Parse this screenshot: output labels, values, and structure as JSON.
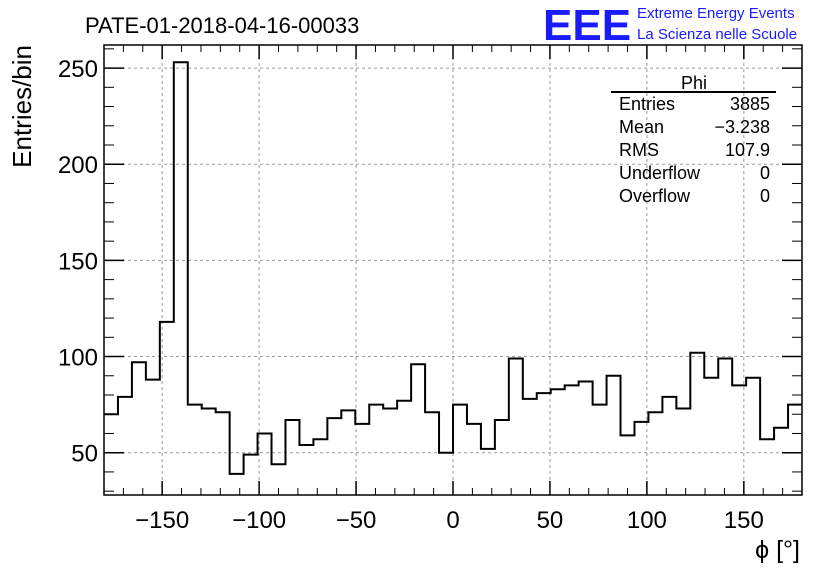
{
  "chart_data": {
    "type": "histogram",
    "title": "PATE-01-2018-04-16-00033",
    "xlabel": "ϕ [°]",
    "ylabel": "Entries/bin",
    "xlim": [
      -180,
      180
    ],
    "ylim": [
      28,
      262
    ],
    "x_ticks": [
      -150,
      -100,
      -50,
      0,
      50,
      100,
      150
    ],
    "y_ticks": [
      50,
      100,
      150,
      200,
      250
    ],
    "grid": true,
    "bin_width": 7.2,
    "bin_edges_start": -180,
    "values": [
      70,
      79,
      97,
      88,
      118,
      253,
      75,
      73,
      71,
      39,
      49,
      60,
      44,
      67,
      54,
      57,
      68,
      72,
      65,
      75,
      73,
      77,
      96,
      71,
      50,
      75,
      65,
      52,
      67,
      99,
      78,
      81,
      83,
      85,
      87,
      75,
      90,
      59,
      66,
      71,
      79,
      73,
      102,
      89,
      99,
      85,
      89,
      57,
      63,
      75
    ],
    "stats": {
      "name": "Phi",
      "rows": [
        {
          "label": "Entries",
          "value": "3885"
        },
        {
          "label": "Mean",
          "value": "−3.238"
        },
        {
          "label": "RMS",
          "value": "107.9"
        },
        {
          "label": "Underflow",
          "value": "0"
        },
        {
          "label": "Overflow",
          "value": "0"
        }
      ]
    }
  },
  "logo": {
    "mark": "EEE",
    "line1": "Extreme Energy Events",
    "line2": "La Scienza nelle Scuole",
    "color": "#1a1aff"
  }
}
